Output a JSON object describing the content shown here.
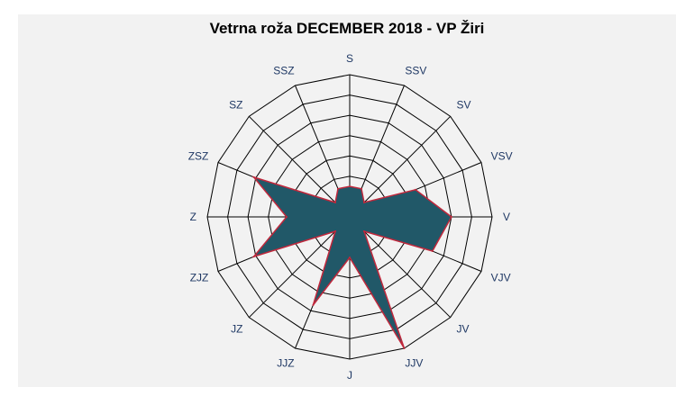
{
  "chart_data": {
    "type": "radar",
    "title": "Vetrna roža DECEMBER 2018 - VP Žiri",
    "categories": [
      "S",
      "SSV",
      "SV",
      "VSV",
      "V",
      "VJV",
      "JV",
      "JJV",
      "J",
      "JJZ",
      "JZ",
      "ZJZ",
      "Z",
      "ZSZ",
      "SZ",
      "SSZ"
    ],
    "values": [
      1.5,
      1.5,
      1.0,
      3.5,
      5.0,
      4.4,
      1.0,
      7.0,
      2.0,
      4.7,
      1.0,
      5.1,
      3.1,
      5.1,
      1.0,
      1.5
    ],
    "rlim": [
      0,
      7
    ],
    "ring_step": 1,
    "grid": true,
    "colors": {
      "fill": "#215868",
      "stroke": "#c0283c",
      "grid": "#000000",
      "label": "#1f3864",
      "background": "#f2f2f2"
    }
  }
}
